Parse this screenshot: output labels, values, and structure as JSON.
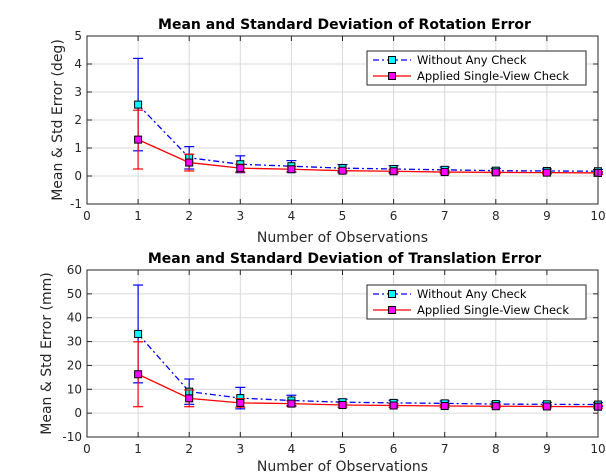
{
  "chart_data": [
    {
      "type": "line",
      "title": "Mean and Standard Deviation of Rotation Error",
      "xlabel": "Number of Observations",
      "ylabel": "Mean & Std Error (deg)",
      "xlim": [
        0,
        10
      ],
      "ylim": [
        -1,
        5
      ],
      "xticks": [
        "0",
        "1",
        "2",
        "3",
        "4",
        "5",
        "6",
        "7",
        "8",
        "9",
        "10"
      ],
      "yticks": [
        "-1",
        "0",
        "1",
        "2",
        "3",
        "4",
        "5"
      ],
      "grid": true,
      "legend_position": "top-right",
      "x": [
        1,
        2,
        3,
        4,
        5,
        6,
        7,
        8,
        9,
        10
      ],
      "series": [
        {
          "name": "Without Any Check",
          "color": "#0000ff",
          "marker_color": "#00ffff",
          "line_style": "dash-dot",
          "values": [
            2.55,
            0.65,
            0.42,
            0.35,
            0.28,
            0.25,
            0.22,
            0.19,
            0.18,
            0.17
          ],
          "error": [
            1.65,
            0.4,
            0.3,
            0.2,
            0.13,
            0.12,
            0.1,
            0.08,
            0.07,
            0.06
          ]
        },
        {
          "name": "Applied Single-View Check",
          "color": "#ff0000",
          "marker_color": "#ff00ff",
          "line_style": "solid",
          "values": [
            1.3,
            0.48,
            0.28,
            0.24,
            0.19,
            0.17,
            0.14,
            0.13,
            0.12,
            0.11
          ],
          "error": [
            1.05,
            0.3,
            0.14,
            0.1,
            0.08,
            0.07,
            0.06,
            0.05,
            0.05,
            0.05
          ]
        }
      ]
    },
    {
      "type": "line",
      "title": "Mean and Standard Deviation of Translation Error",
      "xlabel": "Number of Observations",
      "ylabel": "Mean & Std Error (mm)",
      "xlim": [
        0,
        10
      ],
      "ylim": [
        -10,
        60
      ],
      "xticks": [
        "0",
        "1",
        "2",
        "3",
        "4",
        "5",
        "6",
        "7",
        "8",
        "9",
        "10"
      ],
      "yticks": [
        "-10",
        "0",
        "10",
        "20",
        "30",
        "40",
        "50",
        "60"
      ],
      "grid": true,
      "legend_position": "top-right",
      "x": [
        1,
        2,
        3,
        4,
        5,
        6,
        7,
        8,
        9,
        10
      ],
      "series": [
        {
          "name": "Without Any Check",
          "color": "#0000ff",
          "marker_color": "#00ffff",
          "line_style": "dash-dot",
          "values": [
            33.2,
            9.0,
            6.3,
            5.3,
            4.6,
            4.3,
            4.1,
            3.8,
            3.7,
            3.6
          ],
          "error": [
            20.5,
            5.3,
            4.5,
            2.2,
            1.2,
            1.1,
            1.0,
            0.9,
            0.8,
            0.8
          ]
        },
        {
          "name": "Applied Single-View Check",
          "color": "#ff0000",
          "marker_color": "#ff00ff",
          "line_style": "solid",
          "values": [
            16.3,
            6.2,
            4.3,
            4.0,
            3.4,
            3.2,
            3.0,
            2.9,
            2.8,
            2.7
          ],
          "error": [
            13.6,
            3.5,
            1.8,
            1.2,
            0.9,
            0.8,
            0.7,
            0.6,
            0.6,
            0.6
          ]
        }
      ]
    }
  ]
}
